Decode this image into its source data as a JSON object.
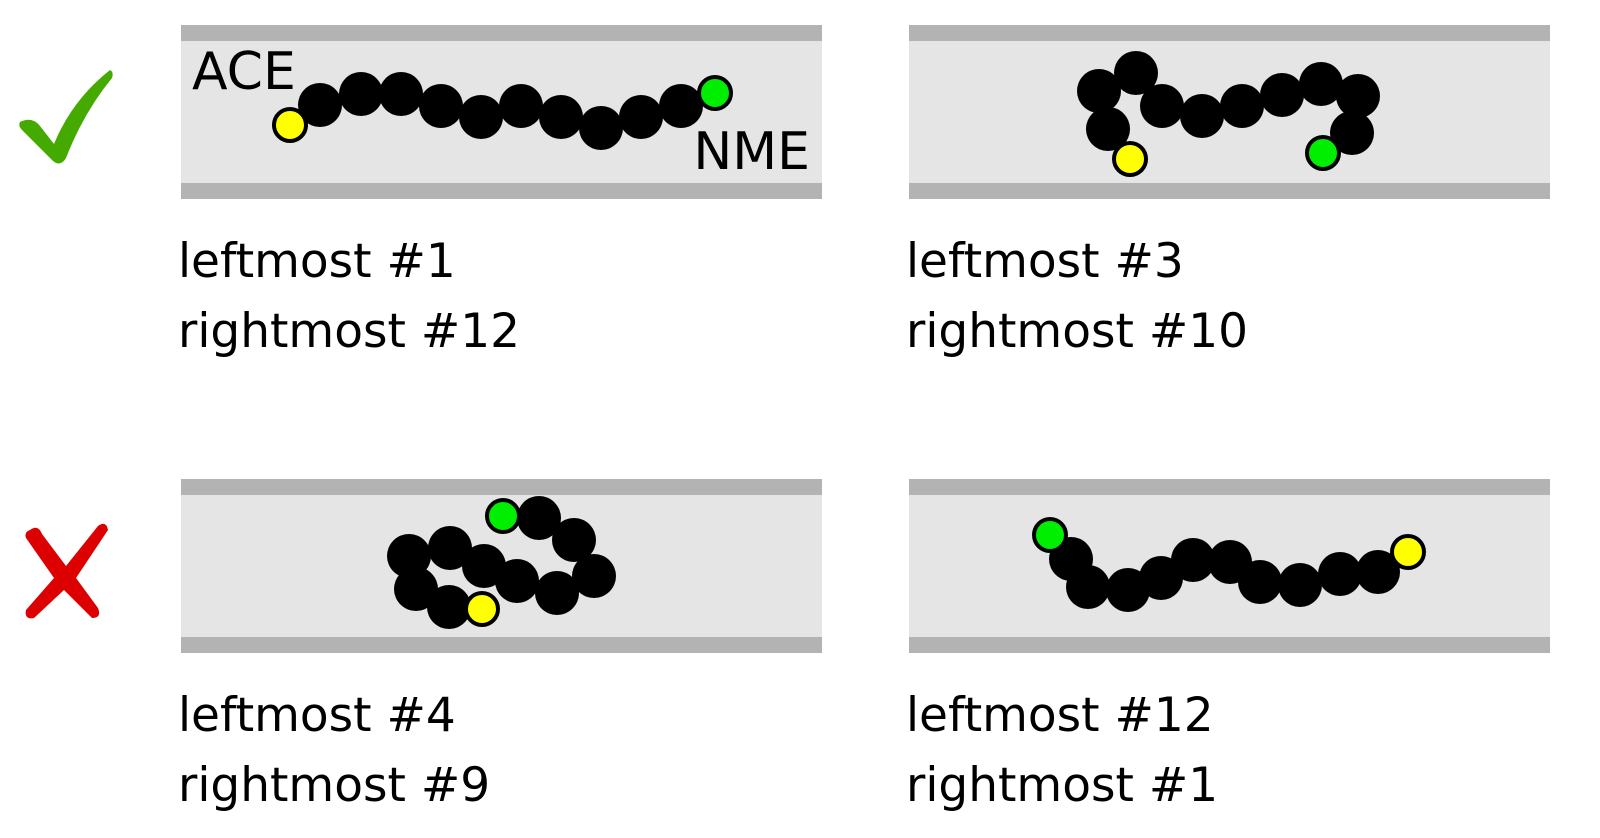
{
  "colors": {
    "channel_fill": "#e5e5e5",
    "channel_wall": "#b3b3b3",
    "residue": "#000000",
    "ace_terminus": "#ffff00",
    "nme_terminus": "#00ee00",
    "check": "#44aa00",
    "cross": "#dd0000"
  },
  "icons": {
    "correct_row": "check-icon",
    "incorrect_row": "cross-icon"
  },
  "labels": {
    "ace": "ACE",
    "nme": "NME"
  },
  "panels": [
    {
      "leftmost": "leftmost #1",
      "rightmost": "rightmost #12"
    },
    {
      "leftmost": "leftmost #3",
      "rightmost": "rightmost #10"
    },
    {
      "leftmost": "leftmost #4",
      "rightmost": "rightmost #9"
    },
    {
      "leftmost": "leftmost #12",
      "rightmost": "rightmost #1"
    }
  ]
}
